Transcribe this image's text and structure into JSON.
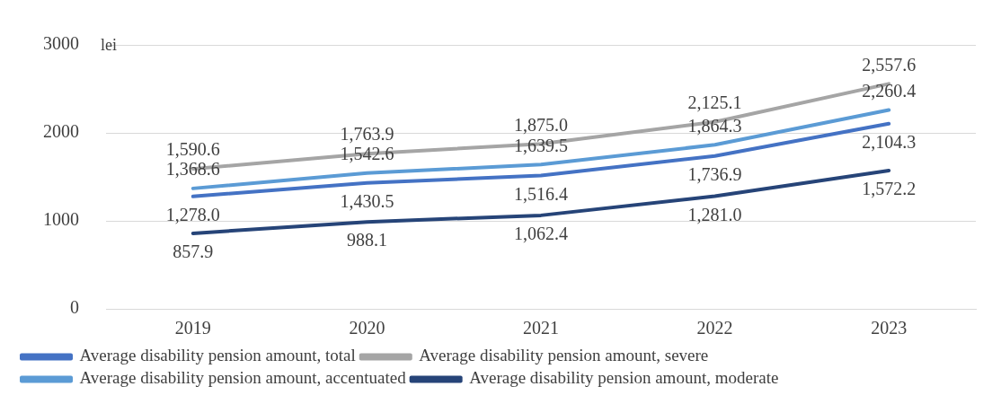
{
  "chart_data": {
    "type": "line",
    "ylabel": "lei",
    "categories": [
      "2019",
      "2020",
      "2021",
      "2022",
      "2023"
    ],
    "series": [
      {
        "name": "Average disability pension amount, total",
        "color": "#4472c4",
        "values": [
          1278.0,
          1430.5,
          1516.4,
          1736.9,
          2104.3
        ],
        "value_labels": [
          "1,278.0",
          "1,430.5",
          "1,516.4",
          "1,736.9",
          "2,104.3"
        ]
      },
      {
        "name": "Average disability pension amount, severe",
        "color": "#a5a5a5",
        "values": [
          1590.6,
          1763.9,
          1875.0,
          2125.1,
          2557.6
        ],
        "value_labels": [
          "1,590.6",
          "1,763.9",
          "1,875.0",
          "2,125.1",
          "2,557.6"
        ]
      },
      {
        "name": "Average disability pension amount, accentuated",
        "color": "#5b9bd5",
        "values": [
          1368.6,
          1542.6,
          1639.5,
          1864.3,
          2260.4
        ],
        "value_labels": [
          "1,368.6",
          "1,542.6",
          "1,639.5",
          "1,864.3",
          "2,260.4"
        ]
      },
      {
        "name": "Average disability pension amount, moderate",
        "color": "#264478",
        "values": [
          857.9,
          988.1,
          1062.4,
          1281.0,
          1572.2
        ],
        "value_labels": [
          "857.9",
          "988.1",
          "1,062.4",
          "1,281.0",
          "1,572.2"
        ]
      }
    ],
    "ylim": [
      0,
      3000
    ],
    "yticks": [
      0,
      1000,
      2000,
      3000
    ],
    "grid": "y",
    "legend": "bottom",
    "marker": "none",
    "line_style": "solid"
  }
}
